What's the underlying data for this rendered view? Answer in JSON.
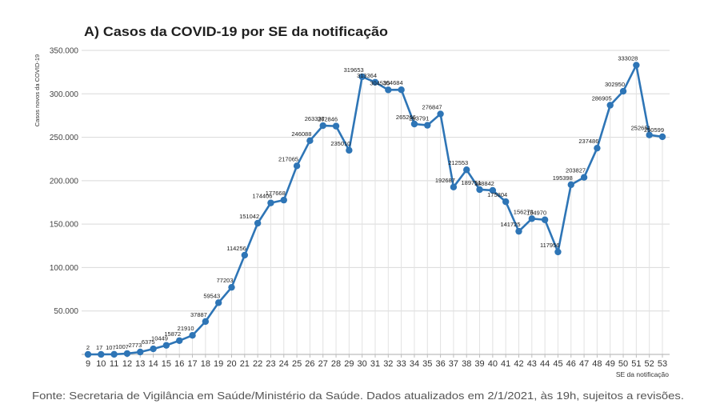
{
  "chart_data": {
    "type": "line",
    "title": "A) Casos da COVID-19 por SE da notificação",
    "ylabel": "Casos novos da COVID-19",
    "xlabel": "SE da notificação",
    "x": [
      9,
      10,
      11,
      12,
      13,
      14,
      15,
      16,
      17,
      18,
      19,
      20,
      21,
      22,
      23,
      24,
      25,
      26,
      27,
      28,
      29,
      30,
      31,
      32,
      33,
      34,
      35,
      36,
      37,
      38,
      39,
      40,
      41,
      42,
      43,
      44,
      45,
      46,
      47,
      48,
      49,
      50,
      51,
      52,
      53
    ],
    "series": [
      {
        "values": [
          2,
          17,
          107,
          1007,
          2773,
          6375,
          10449,
          15872,
          21910,
          37887,
          59543,
          77203,
          114256,
          151042,
          174406,
          177668,
          217065,
          246088,
          263337,
          262846,
          235010,
          319653,
          313364,
          304535,
          304684,
          265266,
          263791,
          276847,
          192687,
          212553,
          189751,
          188842,
          175804,
          141725,
          156273,
          154970,
          117956,
          195398,
          203827,
          237486,
          286905,
          302950,
          333028,
          252651,
          250599
        ]
      }
    ],
    "ylim": [
      0,
      350000
    ],
    "yticks": [
      {
        "value": 50000,
        "label": "50.000"
      },
      {
        "value": 100000,
        "label": "100.000"
      },
      {
        "value": 150000,
        "label": "150.000"
      },
      {
        "value": 200000,
        "label": "200.000"
      },
      {
        "value": 250000,
        "label": "250.000"
      },
      {
        "value": 300000,
        "label": "300.000"
      },
      {
        "value": 350000,
        "label": "350.000"
      }
    ],
    "grid": "horizontal",
    "drop_lines": true,
    "data_labels": true,
    "markers": "circle",
    "legend": "none",
    "colors": {
      "line": "#2e75b6",
      "grid": "#d9d9d9",
      "drop_line": "#e2e2e2",
      "baseline": "#bdbdbd"
    }
  },
  "footer": {
    "source": "Fonte: Secretaria de Vigilância em Saúde/Ministério da Saúde. Dados atualizados em 2/1/2021, às 19h, sujeitos a revisões."
  }
}
